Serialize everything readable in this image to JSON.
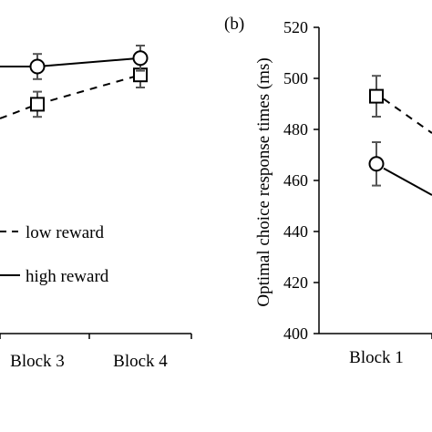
{
  "chart_data": [
    {
      "type": "line",
      "title": "",
      "categories": [
        "Block 3",
        "Block 4"
      ],
      "xlabel": "",
      "ylabel": "",
      "series": [
        {
          "name": "low reward",
          "marker": "square",
          "dash": true,
          "values": [
            490,
            497
          ],
          "errors": [
            3,
            3
          ]
        },
        {
          "name": "high reward",
          "marker": "circle",
          "dash": false,
          "values": [
            499,
            501
          ],
          "errors": [
            3,
            3
          ]
        }
      ],
      "legend": [
        "low reward",
        "high reward"
      ]
    },
    {
      "type": "line",
      "panel_label": "(b)",
      "categories": [
        "Block 1"
      ],
      "xlabel": "",
      "ylabel": "Optimal choice response times (ms)",
      "ylim": [
        400,
        520
      ],
      "yticks": [
        "400",
        "420",
        "440",
        "460",
        "480",
        "500",
        "520"
      ],
      "series": [
        {
          "name": "low reward",
          "marker": "square",
          "dash": true,
          "values": [
            493
          ],
          "errors": [
            8
          ]
        },
        {
          "name": "high reward",
          "marker": "circle",
          "dash": false,
          "values": [
            466.5
          ],
          "errors": [
            8.5
          ]
        }
      ]
    }
  ],
  "colors": {
    "ink": "#000000",
    "background": "#ffffff"
  }
}
